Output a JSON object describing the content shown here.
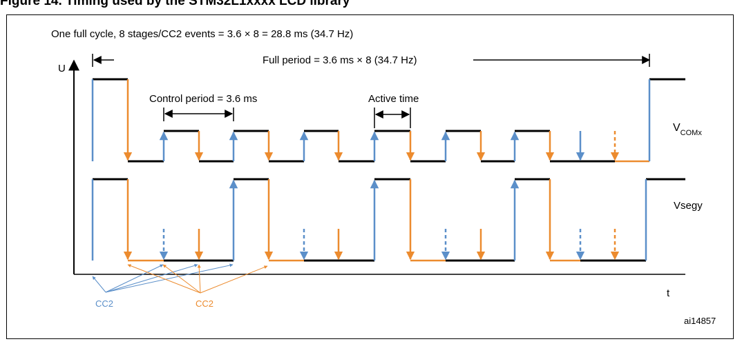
{
  "figure": {
    "title": "Figure 14.  Timing used by the STM32L1xxxx LCD library",
    "cycle_text": "One full cycle, 8 stages/CC2 events = 3.6 × 8 = 28.8 ms (34.7 Hz)",
    "full_period_text": "Full period = 3.6 ms × 8 (34.7 Hz)",
    "control_period_text": "Control period = 3.6 ms",
    "active_time_text": "Active time",
    "y_axis_label": "U",
    "x_axis_label": "t",
    "vcom_label_main": "V",
    "vcom_label_sub": "COMx",
    "vseg_label": "Vsegy",
    "cc2_blue_label": "CC2",
    "cc2_orange_label": "CC2",
    "figure_id": "ai14857"
  },
  "colors": {
    "blue": "#5b8fc9",
    "orange": "#ec8b2e",
    "black": "#000000"
  }
}
